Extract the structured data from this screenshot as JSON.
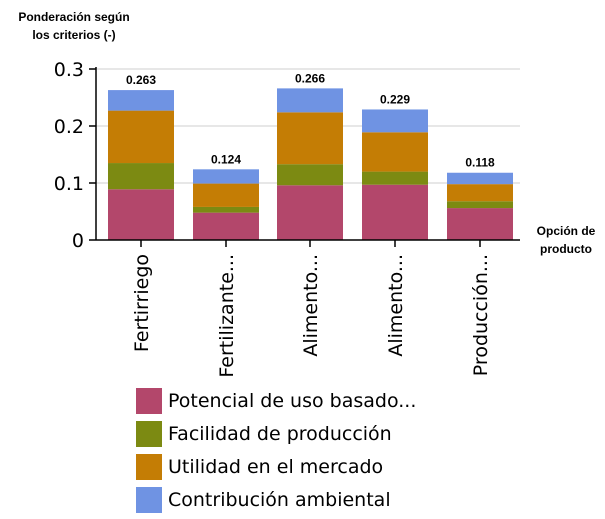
{
  "chart_data": {
    "type": "bar",
    "stacked": true,
    "ylabel": "Ponderación según los criterios (-)",
    "xlabel": "Opción de producto",
    "ylim": [
      0,
      0.3
    ],
    "yticks": [
      "0",
      "0.1",
      "0.2",
      "0.3"
    ],
    "ytick_values": [
      0,
      0.1,
      0.2,
      0.3
    ],
    "grid": true,
    "categories": [
      "Fertirriego",
      "Fertilizante...",
      "Alimento...",
      "Alimento...",
      "Producción..."
    ],
    "totals": [
      "0.263",
      "0.124",
      "0.266",
      "0.229",
      "0.118"
    ],
    "series": [
      {
        "name": "Potencial de uso basado...",
        "color": "#b3476b",
        "values": [
          0.089,
          0.048,
          0.096,
          0.097,
          0.056
        ]
      },
      {
        "name": "Facilidad de producción",
        "color": "#7c8a12",
        "values": [
          0.046,
          0.01,
          0.037,
          0.023,
          0.012
        ]
      },
      {
        "name": "Utilidad en el mercado",
        "color": "#c47d05",
        "values": [
          0.092,
          0.041,
          0.091,
          0.069,
          0.03
        ]
      },
      {
        "name": "Contribución ambiental",
        "color": "#6f93e3",
        "values": [
          0.036,
          0.025,
          0.042,
          0.04,
          0.02
        ]
      }
    ]
  }
}
